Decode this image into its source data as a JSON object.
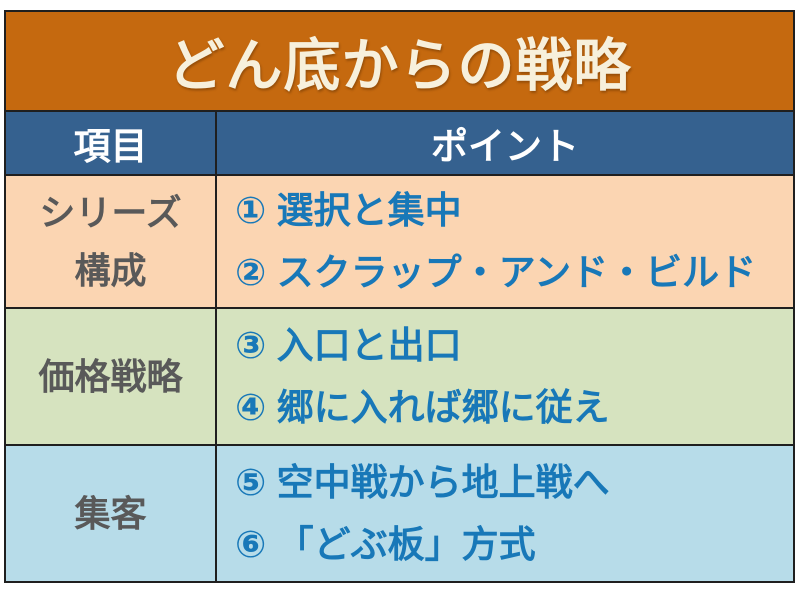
{
  "slide": {
    "title": "どん底からの戦略",
    "header": {
      "item_col": "項目",
      "point_col": "ポイント"
    },
    "rows": [
      {
        "item_lines": [
          "シリーズ",
          "構成"
        ],
        "points": [
          "① 選択と集中",
          "② スクラップ・アンド・ビルド"
        ]
      },
      {
        "item_lines": [
          "価格戦略"
        ],
        "points": [
          "③ 入口と出口",
          "④ 郷に入れば郷に従え"
        ]
      },
      {
        "item_lines": [
          "集客"
        ],
        "points": [
          "⑤ 空中戦から地上戦へ",
          "⑥ 「どぶ板」方式"
        ]
      }
    ],
    "colors": {
      "title_bg": "#c5690f",
      "title_text": "#f7f0dc",
      "header_bg": "#35618f",
      "header_text": "#ffffff",
      "row_series_bg": "#fbd5b2",
      "row_price_bg": "#d6e3bf",
      "row_attract_bg": "#b7dce9",
      "point_text": "#1878b8",
      "item_text": "#595959",
      "border": "#1f1f1f"
    }
  }
}
